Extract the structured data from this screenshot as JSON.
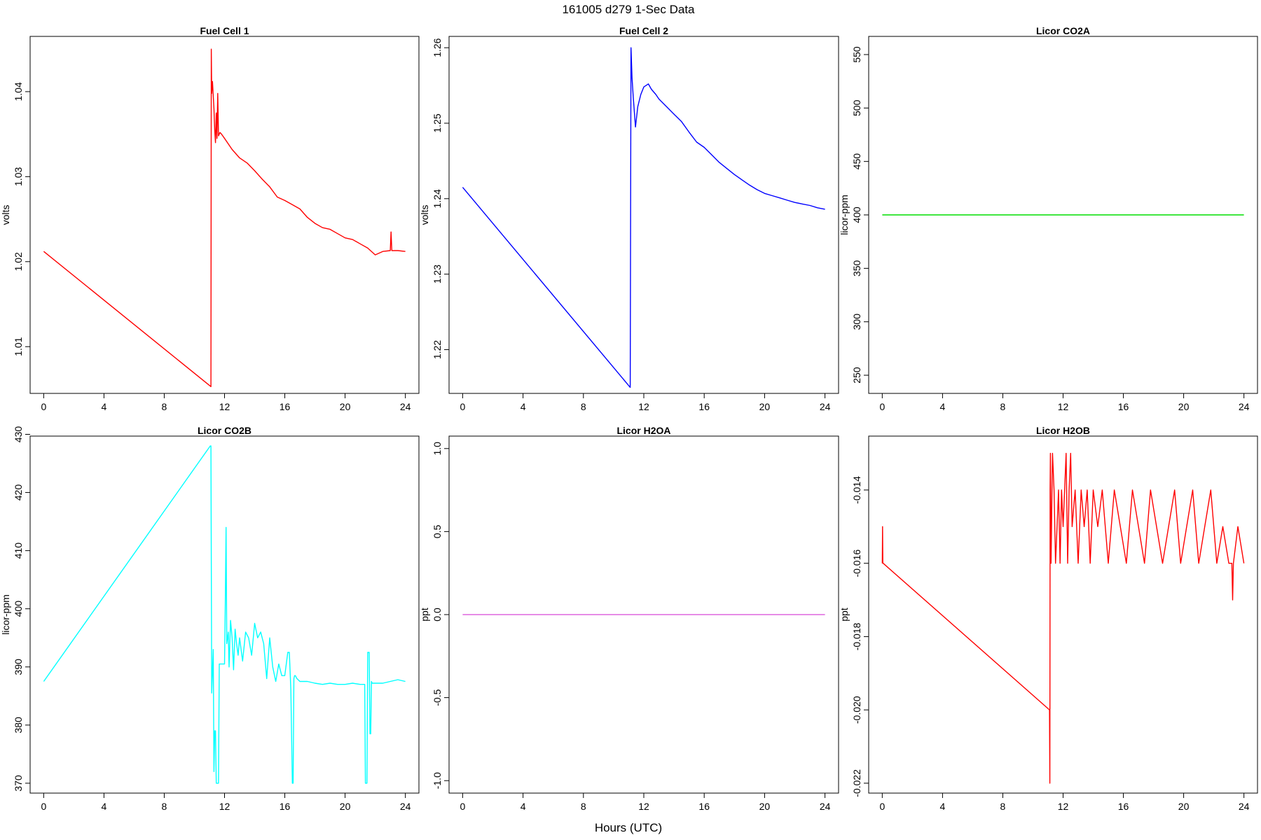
{
  "title": "161005   d279   1-Sec Data",
  "xlabel": "Hours (UTC)",
  "chart_data": [
    {
      "type": "line",
      "title": "Fuel Cell 1",
      "ylabel": "volts",
      "color": "#ff0000",
      "xlim": [
        -0.9,
        24.9
      ],
      "ylim": [
        1.0045,
        1.0465
      ],
      "xticks": [
        0,
        4,
        8,
        12,
        16,
        20,
        24
      ],
      "yticks": [
        1.01,
        1.02,
        1.03,
        1.04
      ],
      "ytick_labels": [
        "1.01",
        "1.02",
        "1.03",
        "1.04"
      ],
      "series": [
        {
          "x": [
            0,
            11.1,
            11.12,
            11.15,
            11.2,
            11.25,
            11.3,
            11.35,
            11.4,
            11.45,
            11.5,
            11.55,
            11.6,
            11.7,
            11.8,
            12.0,
            12.5,
            13.0,
            13.5,
            14.0,
            14.5,
            15.0,
            15.5,
            16.0,
            16.5,
            17.0,
            17.5,
            18.0,
            18.5,
            19.0,
            19.5,
            20.0,
            20.5,
            21.0,
            21.5,
            22.0,
            22.5,
            23.0,
            23.05,
            23.1,
            23.5,
            24.0
          ],
          "y": [
            1.0212,
            1.0053,
            1.045,
            1.0398,
            1.0412,
            1.0395,
            1.038,
            1.0355,
            1.034,
            1.0375,
            1.0345,
            1.0398,
            1.0348,
            1.0352,
            1.035,
            1.0345,
            1.0332,
            1.0322,
            1.0316,
            1.0307,
            1.0297,
            1.0288,
            1.0276,
            1.0272,
            1.0267,
            1.0262,
            1.0252,
            1.0245,
            1.024,
            1.0238,
            1.0233,
            1.0228,
            1.0226,
            1.0221,
            1.0216,
            1.0208,
            1.0212,
            1.0213,
            1.0235,
            1.0213,
            1.0213,
            1.0212
          ]
        }
      ]
    },
    {
      "type": "line",
      "title": "Fuel Cell 2",
      "ylabel": "volts",
      "color": "#0000ff",
      "xlim": [
        -0.9,
        24.9
      ],
      "ylim": [
        1.2142,
        1.2615
      ],
      "xticks": [
        0,
        4,
        8,
        12,
        16,
        20,
        24
      ],
      "yticks": [
        1.22,
        1.23,
        1.24,
        1.25,
        1.26
      ],
      "ytick_labels": [
        "1.22",
        "1.23",
        "1.24",
        "1.25",
        "1.26"
      ],
      "series": [
        {
          "x": [
            0,
            11.1,
            11.15,
            11.22,
            11.3,
            11.45,
            11.6,
            11.8,
            12.0,
            12.3,
            12.5,
            12.8,
            13.0,
            13.5,
            14.0,
            14.5,
            15.0,
            15.5,
            16.0,
            16.5,
            17.0,
            17.5,
            18.0,
            18.5,
            19.0,
            19.5,
            20.0,
            20.5,
            21.0,
            21.5,
            22.0,
            22.5,
            23.0,
            23.5,
            24.0
          ],
          "y": [
            1.2415,
            1.215,
            1.26,
            1.256,
            1.2535,
            1.2495,
            1.2522,
            1.2538,
            1.2548,
            1.2552,
            1.2545,
            1.2538,
            1.2532,
            1.2522,
            1.2512,
            1.2502,
            1.2488,
            1.2475,
            1.2468,
            1.2458,
            1.2448,
            1.244,
            1.2432,
            1.2425,
            1.2418,
            1.2412,
            1.2407,
            1.2404,
            1.2401,
            1.2398,
            1.2395,
            1.2393,
            1.2391,
            1.2388,
            1.2386
          ]
        }
      ]
    },
    {
      "type": "line",
      "title": "Licor CO2A",
      "ylabel": "licor-ppm",
      "color": "#00dd00",
      "xlim": [
        -0.9,
        24.9
      ],
      "ylim": [
        233,
        567
      ],
      "xticks": [
        0,
        4,
        8,
        12,
        16,
        20,
        24
      ],
      "yticks": [
        250,
        300,
        350,
        400,
        450,
        500,
        550
      ],
      "ytick_labels": [
        "250",
        "300",
        "350",
        "400",
        "450",
        "500",
        "550"
      ],
      "series": [
        {
          "x": [
            0,
            24
          ],
          "y": [
            400,
            400
          ]
        }
      ]
    },
    {
      "type": "line",
      "title": "Licor CO2B",
      "ylabel": "licor-ppm",
      "color": "#00ffff",
      "xlim": [
        -0.9,
        24.9
      ],
      "ylim": [
        368.3,
        429.7
      ],
      "xticks": [
        0,
        4,
        8,
        12,
        16,
        20,
        24
      ],
      "yticks": [
        370,
        380,
        390,
        400,
        410,
        420,
        430
      ],
      "ytick_labels": [
        "370",
        "380",
        "390",
        "400",
        "410",
        "420",
        "430"
      ],
      "series": [
        {
          "x": [
            0,
            11.05,
            11.1,
            11.15,
            11.25,
            11.3,
            11.35,
            11.4,
            11.45,
            11.6,
            11.65,
            11.75,
            11.8,
            12.0,
            12.05,
            12.1,
            12.15,
            12.25,
            12.3,
            12.4,
            12.5,
            12.6,
            12.7,
            12.8,
            12.9,
            13.0,
            13.2,
            13.4,
            13.6,
            13.8,
            14.0,
            14.2,
            14.4,
            14.6,
            14.8,
            15.0,
            15.2,
            15.4,
            15.6,
            15.8,
            16.0,
            16.2,
            16.3,
            16.4,
            16.5,
            16.55,
            16.6,
            16.65,
            16.7,
            16.8,
            17.0,
            17.5,
            18.0,
            18.5,
            19.0,
            19.5,
            20.0,
            20.5,
            21.0,
            21.3,
            21.35,
            21.45,
            21.5,
            21.6,
            21.65,
            21.7,
            21.75,
            21.8,
            22.0,
            22.5,
            23.0,
            23.5,
            24.0
          ],
          "y": [
            387.5,
            428,
            428,
            385.5,
            393,
            372,
            379,
            379,
            370,
            370,
            390.5,
            390.5,
            390.5,
            390.5,
            401,
            414,
            394,
            396,
            390,
            398,
            395,
            389.5,
            396.5,
            394,
            392,
            395,
            391,
            396,
            395,
            392,
            397.5,
            395,
            396,
            394,
            388,
            395,
            390,
            387.5,
            390.5,
            388.5,
            388.5,
            392.5,
            392.5,
            386,
            370,
            370,
            388,
            388.5,
            388.5,
            388,
            387.5,
            387.5,
            387.2,
            387,
            387.2,
            387,
            387,
            387.2,
            387,
            387,
            370,
            370,
            392.5,
            392.5,
            378.5,
            378.5,
            387.5,
            387.2,
            387.2,
            387.2,
            387.5,
            387.8,
            387.5
          ]
        }
      ]
    },
    {
      "type": "line",
      "title": "Licor H2OA",
      "ylabel": "ppt",
      "color": "#dd66dd",
      "xlim": [
        -0.9,
        24.9
      ],
      "ylim": [
        -1.075,
        1.075
      ],
      "xticks": [
        0,
        4,
        8,
        12,
        16,
        20,
        24
      ],
      "yticks": [
        -1.0,
        -0.5,
        0.0,
        0.5,
        1.0
      ],
      "ytick_labels": [
        "-1.0",
        "-0.5",
        "0.0",
        "0.5",
        "1.0"
      ],
      "series": [
        {
          "x": [
            0,
            24
          ],
          "y": [
            0,
            0
          ]
        }
      ]
    },
    {
      "type": "line",
      "title": "Licor H2OB",
      "ylabel": "ppt",
      "color": "#ff0000",
      "xlim": [
        -0.9,
        24.9
      ],
      "ylim": [
        -0.02227,
        -0.01253
      ],
      "xticks": [
        0,
        4,
        8,
        12,
        16,
        20,
        24
      ],
      "yticks": [
        -0.022,
        -0.02,
        -0.018,
        -0.016,
        -0.014
      ],
      "ytick_labels": [
        "-0.022",
        "-0.020",
        "-0.018",
        "-0.016",
        "-0.014"
      ],
      "series": [
        {
          "x": [
            0,
            0.02,
            0.04,
            0.06,
            11.1,
            11.12,
            11.14,
            11.16,
            11.2,
            11.3,
            11.4,
            11.5,
            11.6,
            11.7,
            11.8,
            11.9,
            12.0,
            12.1,
            12.2,
            12.3,
            12.4,
            12.5,
            12.6,
            12.8,
            13.0,
            13.2,
            13.4,
            13.6,
            13.8,
            14.0,
            14.3,
            14.6,
            15.0,
            15.4,
            15.8,
            16.2,
            16.6,
            17.0,
            17.4,
            17.8,
            18.2,
            18.6,
            19.0,
            19.4,
            19.8,
            20.2,
            20.6,
            21.0,
            21.4,
            21.8,
            22.2,
            22.6,
            23.0,
            23.2,
            23.25,
            23.3,
            23.6,
            24.0
          ],
          "y": [
            -0.016,
            -0.015,
            -0.016,
            -0.016,
            -0.02,
            -0.022,
            -0.014,
            -0.013,
            -0.016,
            -0.013,
            -0.014,
            -0.016,
            -0.015,
            -0.014,
            -0.016,
            -0.014,
            -0.015,
            -0.014,
            -0.013,
            -0.016,
            -0.014,
            -0.013,
            -0.015,
            -0.014,
            -0.016,
            -0.014,
            -0.015,
            -0.014,
            -0.016,
            -0.014,
            -0.015,
            -0.014,
            -0.016,
            -0.014,
            -0.015,
            -0.016,
            -0.014,
            -0.015,
            -0.016,
            -0.014,
            -0.015,
            -0.016,
            -0.015,
            -0.014,
            -0.016,
            -0.015,
            -0.014,
            -0.016,
            -0.015,
            -0.014,
            -0.016,
            -0.015,
            -0.016,
            -0.016,
            -0.017,
            -0.016,
            -0.015,
            -0.016
          ]
        }
      ]
    }
  ]
}
